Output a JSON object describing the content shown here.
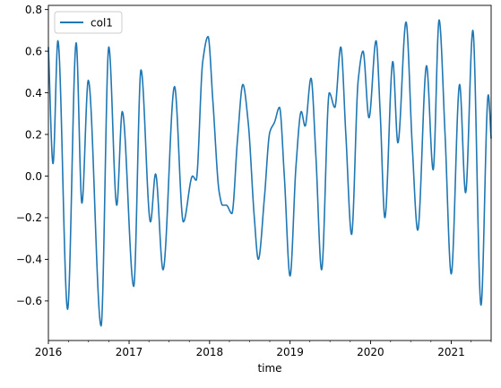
{
  "chart_data": {
    "type": "line",
    "title": "",
    "xlabel": "time",
    "ylabel": "",
    "xlim": [
      "2016-01-01",
      "2021-07-01"
    ],
    "ylim": [
      -0.79,
      0.82
    ],
    "x_ticks": [
      "2016",
      "2017",
      "2018",
      "2019",
      "2020",
      "2021"
    ],
    "y_ticks": [
      -0.6,
      -0.4,
      -0.2,
      0.0,
      0.2,
      0.4,
      0.6,
      0.8
    ],
    "y_tick_labels": [
      "−0.6",
      "−0.4",
      "−0.2",
      "0.0",
      "0.2",
      "0.4",
      "0.6",
      "0.8"
    ],
    "grid": false,
    "legend": "upper-left",
    "series": [
      {
        "name": "col1",
        "color": "#1f77b4",
        "points": [
          [
            "2016-01-01",
            0.62
          ],
          [
            "2016-01-22",
            0.06
          ],
          [
            "2016-02-13",
            0.65
          ],
          [
            "2016-03-28",
            -0.64
          ],
          [
            "2016-05-06",
            0.64
          ],
          [
            "2016-06-01",
            -0.13
          ],
          [
            "2016-06-30",
            0.46
          ],
          [
            "2016-08-27",
            -0.72
          ],
          [
            "2016-10-01",
            0.62
          ],
          [
            "2016-11-06",
            -0.14
          ],
          [
            "2016-12-01",
            0.31
          ],
          [
            "2017-01-22",
            -0.53
          ],
          [
            "2017-02-24",
            0.51
          ],
          [
            "2017-04-08",
            -0.22
          ],
          [
            "2017-05-01",
            0.01
          ],
          [
            "2017-06-04",
            -0.45
          ],
          [
            "2017-07-26",
            0.43
          ],
          [
            "2017-09-04",
            -0.22
          ],
          [
            "2017-10-16",
            0.0
          ],
          [
            "2017-11-01",
            -0.02
          ],
          [
            "2017-12-01",
            0.55
          ],
          [
            "2017-12-25",
            0.67
          ],
          [
            "2018-01-16",
            0.36
          ],
          [
            "2018-02-14",
            -0.08
          ],
          [
            "2018-03-01",
            -0.14
          ],
          [
            "2018-03-18",
            -0.14
          ],
          [
            "2018-04-12",
            -0.18
          ],
          [
            "2018-05-08",
            0.18
          ],
          [
            "2018-06-01",
            0.44
          ],
          [
            "2018-06-25",
            0.26
          ],
          [
            "2018-07-23",
            -0.2
          ],
          [
            "2018-08-10",
            -0.4
          ],
          [
            "2018-09-07",
            -0.1
          ],
          [
            "2018-10-01",
            0.21
          ],
          [
            "2018-10-23",
            0.26
          ],
          [
            "2018-11-14",
            0.33
          ],
          [
            "2018-12-06",
            0.0
          ],
          [
            "2019-01-01",
            -0.48
          ],
          [
            "2019-01-28",
            0.05
          ],
          [
            "2019-02-21",
            0.31
          ],
          [
            "2019-03-10",
            0.24
          ],
          [
            "2019-04-06",
            0.47
          ],
          [
            "2019-04-28",
            0.1
          ],
          [
            "2019-05-24",
            -0.45
          ],
          [
            "2019-06-28",
            0.4
          ],
          [
            "2019-07-23",
            0.33
          ],
          [
            "2019-08-19",
            0.62
          ],
          [
            "2019-09-11",
            0.2
          ],
          [
            "2019-10-07",
            -0.28
          ],
          [
            "2019-11-06",
            0.46
          ],
          [
            "2019-11-28",
            0.6
          ],
          [
            "2019-12-25",
            0.28
          ],
          [
            "2020-01-26",
            0.65
          ],
          [
            "2020-02-14",
            0.3
          ],
          [
            "2020-03-06",
            -0.2
          ],
          [
            "2020-04-11",
            0.55
          ],
          [
            "2020-05-04",
            0.16
          ],
          [
            "2020-06-10",
            0.74
          ],
          [
            "2020-07-08",
            0.15
          ],
          [
            "2020-08-02",
            -0.26
          ],
          [
            "2020-09-11",
            0.53
          ],
          [
            "2020-10-11",
            0.03
          ],
          [
            "2020-11-07",
            0.75
          ],
          [
            "2020-12-04",
            0.2
          ],
          [
            "2021-01-01",
            -0.47
          ],
          [
            "2021-02-08",
            0.44
          ],
          [
            "2021-03-07",
            -0.08
          ],
          [
            "2021-04-09",
            0.7
          ],
          [
            "2021-05-16",
            -0.62
          ],
          [
            "2021-06-18",
            0.39
          ],
          [
            "2021-07-01",
            0.18
          ]
        ]
      }
    ]
  }
}
